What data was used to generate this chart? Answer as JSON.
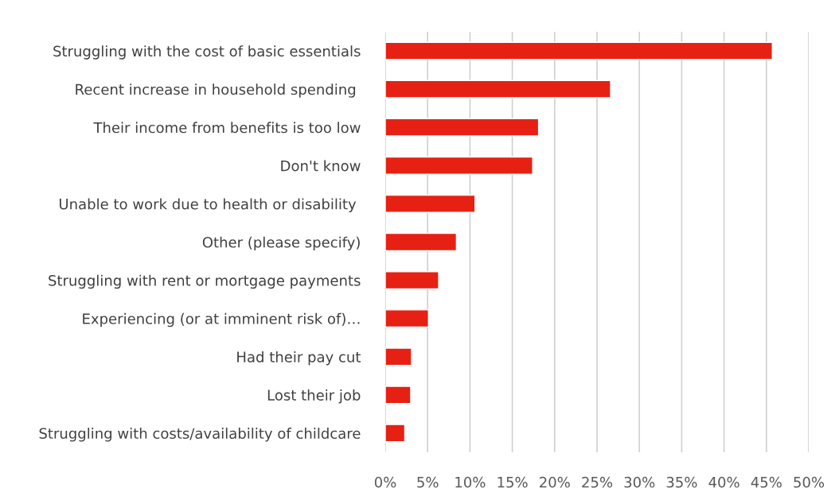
{
  "chart_data": {
    "type": "bar",
    "orientation": "horizontal",
    "categories": [
      "Struggling with the cost of basic essentials",
      "Recent increase in household spending ",
      "Their income from benefits is too low",
      "Don't know",
      "Unable to work due to health or disability ",
      "Other (please specify)",
      "Struggling with rent or mortgage payments",
      "Experiencing (or at imminent risk of)…",
      "Had their pay cut",
      "Lost their job",
      "Struggling with costs/availability of childcare"
    ],
    "values": [
      45.7,
      26.6,
      18.1,
      17.4,
      10.6,
      8.4,
      6.3,
      5.1,
      3.1,
      3.0,
      2.3
    ],
    "color": "#e62113",
    "xlim": [
      0,
      50
    ],
    "xticks": [
      {
        "value": 0,
        "label": "0%"
      },
      {
        "value": 5,
        "label": "5%"
      },
      {
        "value": 10,
        "label": "10%"
      },
      {
        "value": 15,
        "label": "15%"
      },
      {
        "value": 20,
        "label": "20%"
      },
      {
        "value": 25,
        "label": "25%"
      },
      {
        "value": 30,
        "label": "30%"
      },
      {
        "value": 35,
        "label": "35%"
      },
      {
        "value": 40,
        "label": "40%"
      },
      {
        "value": 45,
        "label": "45%"
      },
      {
        "value": 50,
        "label": "50%"
      }
    ],
    "grid": "x"
  }
}
